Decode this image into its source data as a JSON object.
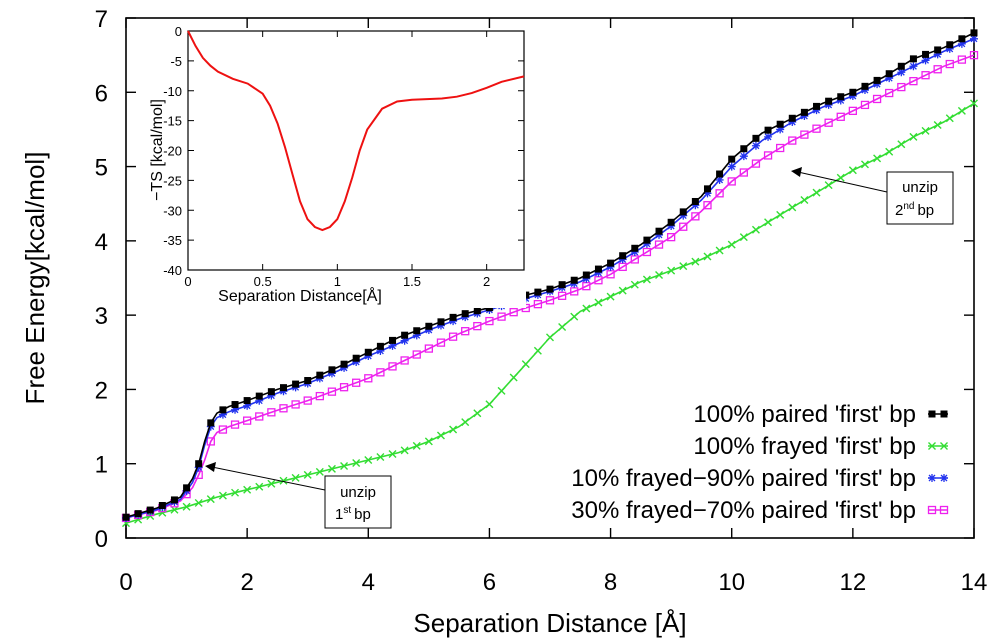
{
  "chart_data": [
    {
      "type": "line",
      "xlabel": "Separation Distance [Å]",
      "ylabel": "Free Energy[kcal/mol]",
      "xlim": [
        0,
        14
      ],
      "ylim": [
        0,
        7
      ],
      "xticks": [
        "0",
        "2",
        "4",
        "6",
        "8",
        "10",
        "12",
        "14"
      ],
      "yticks": [
        "0",
        "1",
        "2",
        "3",
        "4",
        "5",
        "6",
        "7"
      ],
      "legend_position": "bottom-right",
      "series": [
        {
          "name": "100% paired 'first' bp",
          "color": "#000000",
          "marker": "square",
          "x": [
            0,
            0.5,
            0.9,
            1.1,
            1.2,
            1.3,
            1.4,
            1.5,
            1.7,
            2,
            2.5,
            3,
            3.5,
            4,
            4.5,
            5,
            5.5,
            6,
            6.5,
            7,
            7.5,
            8,
            8.5,
            9,
            9.5,
            10,
            10.5,
            11,
            11.5,
            12,
            12.5,
            13,
            13.5,
            14
          ],
          "y": [
            0.28,
            0.4,
            0.55,
            0.8,
            1.0,
            1.3,
            1.55,
            1.68,
            1.77,
            1.85,
            2.0,
            2.12,
            2.3,
            2.5,
            2.7,
            2.85,
            3.0,
            3.1,
            3.25,
            3.35,
            3.5,
            3.7,
            3.95,
            4.25,
            4.6,
            5.1,
            5.45,
            5.65,
            5.85,
            6.0,
            6.2,
            6.45,
            6.6,
            6.8
          ]
        },
        {
          "name": "100% frayed 'first' bp",
          "color": "#33dd33",
          "marker": "x",
          "x": [
            0,
            0.5,
            1,
            1.5,
            2,
            2.5,
            3,
            3.5,
            4,
            4.5,
            5,
            5.5,
            6,
            6.5,
            7,
            7.5,
            8,
            8.5,
            9,
            9.5,
            10,
            10.5,
            11,
            11.5,
            12,
            12.5,
            13,
            13.5,
            14
          ],
          "y": [
            0.2,
            0.32,
            0.42,
            0.55,
            0.65,
            0.75,
            0.85,
            0.95,
            1.05,
            1.15,
            1.3,
            1.5,
            1.8,
            2.25,
            2.7,
            3.05,
            3.25,
            3.45,
            3.6,
            3.75,
            3.95,
            4.2,
            4.45,
            4.7,
            4.95,
            5.15,
            5.4,
            5.6,
            5.85
          ]
        },
        {
          "name": "10% frayed−90% paired 'first' bp",
          "color": "#2233ee",
          "marker": "asterisk",
          "x": [
            0,
            0.5,
            0.9,
            1.1,
            1.2,
            1.3,
            1.4,
            1.5,
            1.7,
            2,
            2.5,
            3,
            3.5,
            4,
            4.5,
            5,
            5.5,
            6,
            6.5,
            7,
            7.5,
            8,
            8.5,
            9,
            9.5,
            10,
            10.5,
            11,
            11.5,
            12,
            12.5,
            13,
            13.5,
            14
          ],
          "y": [
            0.27,
            0.38,
            0.52,
            0.75,
            0.95,
            1.25,
            1.5,
            1.62,
            1.7,
            1.78,
            1.95,
            2.08,
            2.25,
            2.45,
            2.62,
            2.8,
            2.95,
            3.07,
            3.2,
            3.32,
            3.45,
            3.65,
            3.9,
            4.2,
            4.55,
            5.0,
            5.35,
            5.6,
            5.8,
            5.95,
            6.15,
            6.35,
            6.55,
            6.72
          ]
        },
        {
          "name": "30% frayed−70% paired 'first' bp",
          "color": "#ee22ee",
          "marker": "hollow-square",
          "x": [
            0,
            0.5,
            0.9,
            1.1,
            1.2,
            1.3,
            1.4,
            1.5,
            1.7,
            2,
            2.5,
            3,
            3.5,
            4,
            4.5,
            5,
            5.5,
            6,
            6.5,
            7,
            7.5,
            8,
            8.5,
            9,
            9.5,
            10,
            10.5,
            11,
            11.5,
            12,
            12.5,
            13,
            13.5,
            14
          ],
          "y": [
            0.27,
            0.37,
            0.5,
            0.68,
            0.85,
            1.05,
            1.3,
            1.42,
            1.5,
            1.58,
            1.72,
            1.85,
            2.0,
            2.15,
            2.35,
            2.55,
            2.75,
            2.92,
            3.07,
            3.2,
            3.35,
            3.55,
            3.8,
            4.05,
            4.4,
            4.8,
            5.1,
            5.35,
            5.55,
            5.75,
            5.95,
            6.15,
            6.35,
            6.5
          ]
        }
      ],
      "annotations": [
        {
          "label": "unzip",
          "superscript_base": "1",
          "superscript": "st",
          "suffix": "bp",
          "points_to": [
            1.4,
            0.85
          ]
        },
        {
          "label": "unzip",
          "superscript_base": "2",
          "superscript": "nd",
          "suffix": "bp",
          "points_to": [
            10.9,
            5.0
          ]
        }
      ]
    },
    {
      "type": "line",
      "xlabel": "Separation Distance[Å]",
      "ylabel": "−TS [kcal/mol]",
      "xlim": [
        0,
        2.25
      ],
      "ylim": [
        -40,
        0
      ],
      "xticks": [
        "0",
        "0.5",
        "1",
        "1.5",
        "2"
      ],
      "yticks": [
        "0",
        "-5",
        "-10",
        "-15",
        "-20",
        "-25",
        "-30",
        "-35",
        "-40"
      ],
      "series": [
        {
          "color": "#ee1111",
          "x": [
            0,
            0.05,
            0.1,
            0.15,
            0.2,
            0.3,
            0.4,
            0.5,
            0.55,
            0.6,
            0.65,
            0.7,
            0.75,
            0.8,
            0.85,
            0.9,
            0.95,
            1.0,
            1.05,
            1.1,
            1.15,
            1.2,
            1.3,
            1.4,
            1.5,
            1.6,
            1.7,
            1.8,
            1.9,
            2.0,
            2.1,
            2.25
          ],
          "y": [
            0,
            -2.5,
            -4.5,
            -5.8,
            -6.8,
            -8.0,
            -8.8,
            -10.5,
            -12.5,
            -15.5,
            -19.5,
            -24,
            -28.5,
            -31.5,
            -32.8,
            -33.3,
            -32.8,
            -31.5,
            -28.5,
            -24.5,
            -20,
            -16.5,
            -13.0,
            -11.8,
            -11.5,
            -11.4,
            -11.3,
            -11.0,
            -10.4,
            -9.5,
            -8.5,
            -7.6
          ]
        }
      ]
    }
  ]
}
